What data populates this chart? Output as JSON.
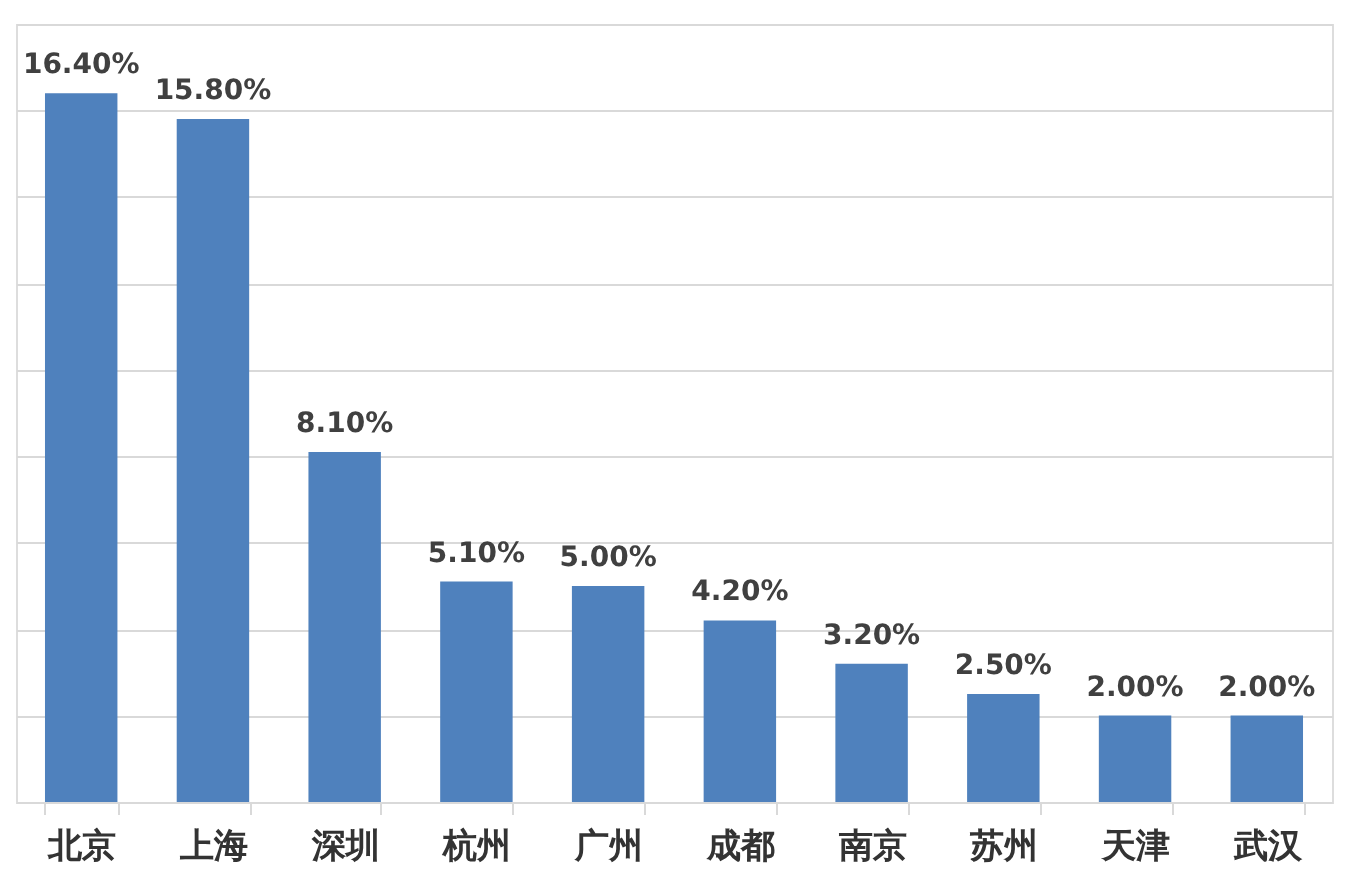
{
  "chart_data": {
    "type": "bar",
    "categories": [
      "北京",
      "上海",
      "深圳",
      "杭州",
      "广州",
      "成都",
      "南京",
      "苏州",
      "天津",
      "武汉"
    ],
    "values": [
      16.4,
      15.8,
      8.1,
      5.1,
      5.0,
      4.2,
      3.2,
      2.5,
      2.0,
      2.0
    ],
    "value_labels": [
      "16.40%",
      "15.80%",
      "8.10%",
      "5.10%",
      "5.00%",
      "4.20%",
      "3.20%",
      "2.50%",
      "2.00%",
      "2.00%"
    ],
    "color": "#4f81bd",
    "ylim": [
      0,
      18
    ],
    "yticks": [
      {
        "value": 0,
        "label": null
      },
      {
        "value": 2,
        "label": null
      },
      {
        "value": 4,
        "label": null
      },
      {
        "value": 6,
        "label": null
      },
      {
        "value": 8,
        "label": null
      },
      {
        "value": 10,
        "label": null
      },
      {
        "value": 12,
        "label": null
      },
      {
        "value": 14,
        "label": null
      },
      {
        "value": 16,
        "label": null
      },
      {
        "value": 18,
        "label": null
      }
    ],
    "tick_labels": "x",
    "grid": "y"
  }
}
